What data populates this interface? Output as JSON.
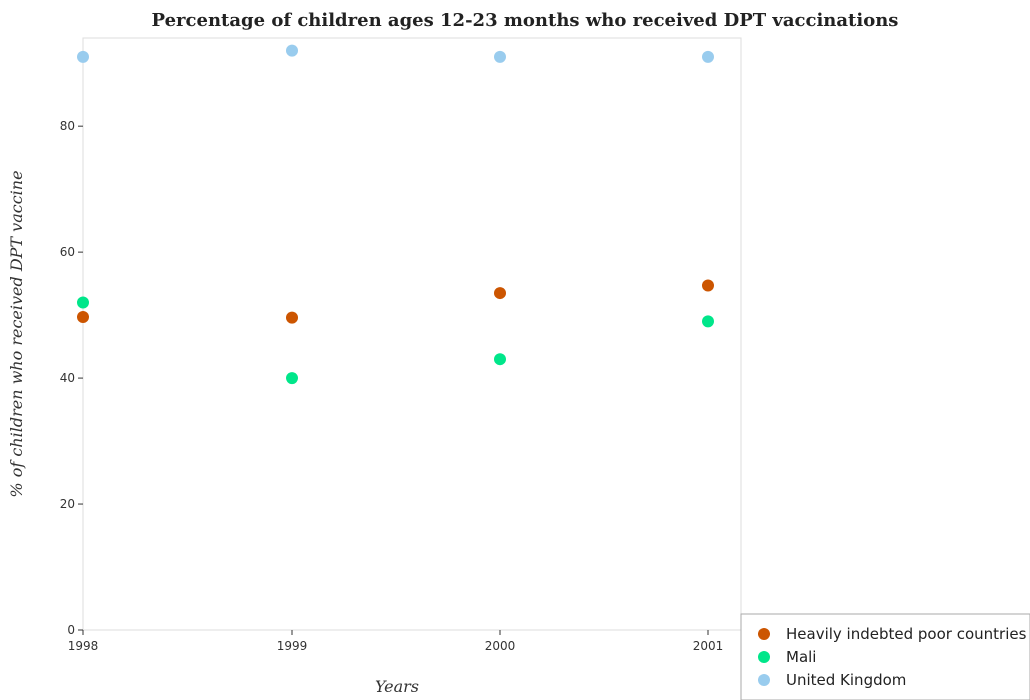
{
  "chart_data": {
    "type": "scatter",
    "title": "Percentage of children ages 12-23 months who received DPT vaccinations",
    "xlabel": "Years",
    "ylabel": "% of children who received DPT vaccine",
    "categories": [
      "1998",
      "1999",
      "2000",
      "2001"
    ],
    "ylim": [
      0,
      94
    ],
    "yticks": [
      0,
      20,
      40,
      60,
      80
    ],
    "grid": false,
    "legend_position": "bottom-right",
    "series": [
      {
        "name": "Heavily indebted poor countries",
        "color": "#cc5500",
        "values": [
          49.7,
          49.6,
          53.5,
          54.7
        ]
      },
      {
        "name": "Mali",
        "color": "#00e68a",
        "values": [
          52,
          40,
          43,
          49
        ]
      },
      {
        "name": "United Kingdom",
        "color": "#99ccee",
        "values": [
          91,
          92,
          91,
          91
        ]
      }
    ]
  }
}
